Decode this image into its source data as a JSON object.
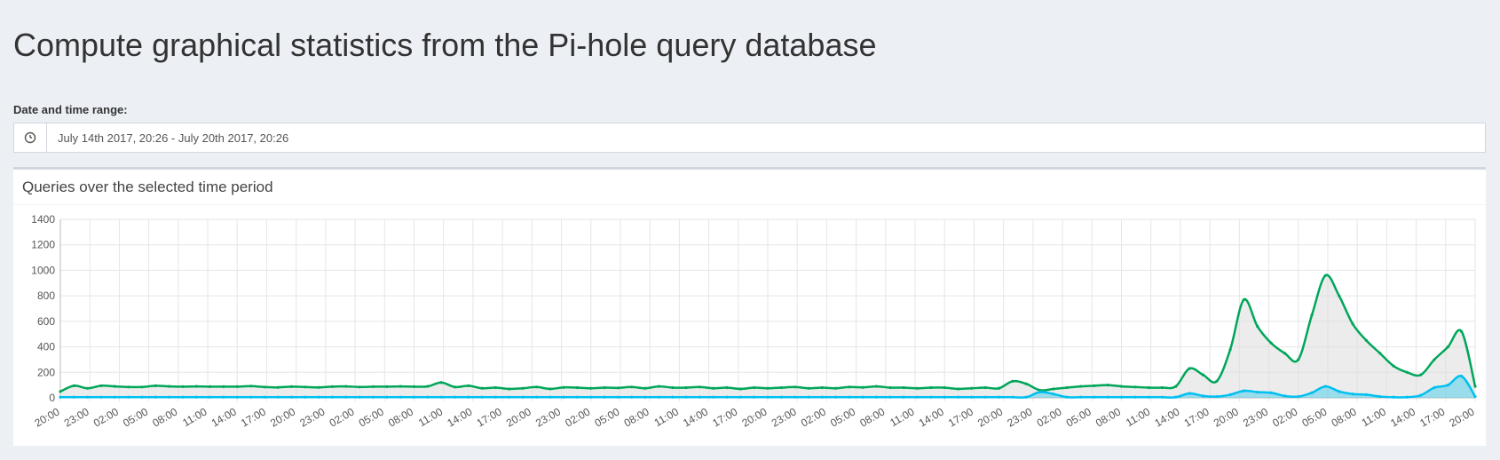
{
  "page": {
    "title": "Compute graphical statistics from the Pi-hole query database",
    "range_label": "Date and time range:",
    "range_value": "July 14th 2017, 20:26 - July 20th 2017, 20:26",
    "range_icon": "clock-icon"
  },
  "box": {
    "title": "Queries over the selected time period"
  },
  "colors": {
    "total": "#00a65a",
    "total_fill": "rgba(220,220,220,0.55)",
    "blocked": "#00c0ef",
    "blocked_fill": "rgba(0,192,239,0.35)",
    "grid": "#e6e6e6"
  },
  "chart_data": {
    "type": "line",
    "y_ticks": [
      0,
      200,
      400,
      600,
      800,
      1000,
      1200,
      1400
    ],
    "ylim": [
      0,
      1400
    ],
    "x_tick_labels": [
      "20:00",
      "23:00",
      "02:00",
      "05:00",
      "08:00",
      "11:00",
      "14:00",
      "17:00",
      "20:00",
      "23:00",
      "02:00",
      "05:00",
      "08:00",
      "11:00",
      "14:00",
      "17:00",
      "20:00",
      "23:00",
      "02:00",
      "05:00",
      "08:00",
      "11:00",
      "14:00",
      "17:00",
      "20:00",
      "23:00",
      "02:00",
      "05:00",
      "08:00",
      "11:00",
      "14:00",
      "17:00",
      "20:00",
      "23:00",
      "02:00",
      "05:00",
      "08:00",
      "11:00",
      "14:00",
      "17:00",
      "20:00",
      "23:00",
      "02:00",
      "05:00",
      "08:00",
      "11:00",
      "14:00",
      "17:00",
      "20:00"
    ],
    "grid": true,
    "hours_span": 144,
    "series": [
      {
        "values": [
          [
            0,
            50
          ],
          [
            1,
            95
          ],
          [
            2,
            75
          ],
          [
            3,
            95
          ],
          [
            4,
            90
          ],
          [
            5,
            85
          ],
          [
            6,
            85
          ],
          [
            7,
            95
          ],
          [
            8,
            90
          ],
          [
            9,
            88
          ],
          [
            10,
            90
          ],
          [
            11,
            88
          ],
          [
            12,
            88
          ],
          [
            13,
            88
          ],
          [
            14,
            92
          ],
          [
            15,
            85
          ],
          [
            16,
            82
          ],
          [
            17,
            88
          ],
          [
            18,
            85
          ],
          [
            19,
            82
          ],
          [
            20,
            88
          ],
          [
            21,
            90
          ],
          [
            22,
            85
          ],
          [
            23,
            88
          ],
          [
            24,
            88
          ],
          [
            25,
            90
          ],
          [
            26,
            88
          ],
          [
            27,
            90
          ],
          [
            28,
            120
          ],
          [
            29,
            85
          ],
          [
            30,
            95
          ],
          [
            31,
            75
          ],
          [
            32,
            80
          ],
          [
            33,
            70
          ],
          [
            34,
            75
          ],
          [
            35,
            85
          ],
          [
            36,
            70
          ],
          [
            37,
            82
          ],
          [
            38,
            80
          ],
          [
            39,
            75
          ],
          [
            40,
            80
          ],
          [
            41,
            78
          ],
          [
            42,
            85
          ],
          [
            43,
            75
          ],
          [
            44,
            90
          ],
          [
            45,
            80
          ],
          [
            46,
            80
          ],
          [
            47,
            85
          ],
          [
            48,
            75
          ],
          [
            49,
            80
          ],
          [
            50,
            70
          ],
          [
            51,
            80
          ],
          [
            52,
            75
          ],
          [
            53,
            80
          ],
          [
            54,
            85
          ],
          [
            55,
            75
          ],
          [
            56,
            80
          ],
          [
            57,
            75
          ],
          [
            58,
            85
          ],
          [
            59,
            82
          ],
          [
            60,
            90
          ],
          [
            61,
            80
          ],
          [
            62,
            80
          ],
          [
            63,
            75
          ],
          [
            64,
            80
          ],
          [
            65,
            80
          ],
          [
            66,
            70
          ],
          [
            67,
            75
          ],
          [
            68,
            80
          ],
          [
            69,
            75
          ],
          [
            70,
            130
          ],
          [
            71,
            110
          ],
          [
            72,
            60
          ],
          [
            73,
            70
          ],
          [
            74,
            80
          ],
          [
            75,
            90
          ],
          [
            76,
            95
          ],
          [
            77,
            100
          ],
          [
            78,
            90
          ],
          [
            79,
            85
          ],
          [
            80,
            80
          ],
          [
            81,
            80
          ],
          [
            82,
            90
          ],
          [
            83,
            230
          ],
          [
            84,
            180
          ],
          [
            85,
            130
          ],
          [
            86,
            380
          ],
          [
            87,
            770
          ],
          [
            88,
            560
          ],
          [
            89,
            430
          ],
          [
            90,
            350
          ],
          [
            91,
            300
          ],
          [
            92,
            650
          ],
          [
            93,
            960
          ],
          [
            94,
            800
          ],
          [
            95,
            580
          ],
          [
            96,
            450
          ],
          [
            97,
            350
          ],
          [
            98,
            250
          ],
          [
            99,
            200
          ],
          [
            100,
            180
          ],
          [
            101,
            300
          ],
          [
            102,
            400
          ],
          [
            103,
            520
          ],
          [
            104,
            90
          ]
        ],
        "name": ""
      },
      {
        "values": [
          [
            0,
            5
          ],
          [
            1,
            5
          ],
          [
            2,
            5
          ],
          [
            3,
            5
          ],
          [
            4,
            5
          ],
          [
            5,
            5
          ],
          [
            6,
            5
          ],
          [
            7,
            5
          ],
          [
            8,
            5
          ],
          [
            9,
            5
          ],
          [
            10,
            5
          ],
          [
            11,
            5
          ],
          [
            12,
            5
          ],
          [
            13,
            5
          ],
          [
            14,
            5
          ],
          [
            15,
            5
          ],
          [
            16,
            5
          ],
          [
            17,
            5
          ],
          [
            18,
            5
          ],
          [
            19,
            5
          ],
          [
            20,
            5
          ],
          [
            21,
            5
          ],
          [
            22,
            5
          ],
          [
            23,
            5
          ],
          [
            24,
            5
          ],
          [
            25,
            5
          ],
          [
            26,
            5
          ],
          [
            27,
            5
          ],
          [
            28,
            5
          ],
          [
            29,
            5
          ],
          [
            30,
            5
          ],
          [
            31,
            5
          ],
          [
            32,
            5
          ],
          [
            33,
            5
          ],
          [
            34,
            5
          ],
          [
            35,
            5
          ],
          [
            36,
            5
          ],
          [
            37,
            5
          ],
          [
            38,
            5
          ],
          [
            39,
            5
          ],
          [
            40,
            5
          ],
          [
            41,
            5
          ],
          [
            42,
            5
          ],
          [
            43,
            5
          ],
          [
            44,
            5
          ],
          [
            45,
            5
          ],
          [
            46,
            5
          ],
          [
            47,
            5
          ],
          [
            48,
            5
          ],
          [
            49,
            5
          ],
          [
            50,
            5
          ],
          [
            51,
            5
          ],
          [
            52,
            5
          ],
          [
            53,
            5
          ],
          [
            54,
            5
          ],
          [
            55,
            5
          ],
          [
            56,
            5
          ],
          [
            57,
            5
          ],
          [
            58,
            5
          ],
          [
            59,
            5
          ],
          [
            60,
            5
          ],
          [
            61,
            5
          ],
          [
            62,
            5
          ],
          [
            63,
            5
          ],
          [
            64,
            5
          ],
          [
            65,
            5
          ],
          [
            66,
            5
          ],
          [
            67,
            5
          ],
          [
            68,
            5
          ],
          [
            69,
            5
          ],
          [
            70,
            5
          ],
          [
            71,
            5
          ],
          [
            72,
            45
          ],
          [
            73,
            30
          ],
          [
            74,
            5
          ],
          [
            75,
            5
          ],
          [
            76,
            5
          ],
          [
            77,
            5
          ],
          [
            78,
            5
          ],
          [
            79,
            5
          ],
          [
            80,
            5
          ],
          [
            81,
            5
          ],
          [
            82,
            5
          ],
          [
            83,
            35
          ],
          [
            84,
            15
          ],
          [
            85,
            10
          ],
          [
            86,
            25
          ],
          [
            87,
            55
          ],
          [
            88,
            45
          ],
          [
            89,
            40
          ],
          [
            90,
            15
          ],
          [
            91,
            10
          ],
          [
            92,
            40
          ],
          [
            93,
            90
          ],
          [
            94,
            50
          ],
          [
            95,
            30
          ],
          [
            96,
            25
          ],
          [
            97,
            10
          ],
          [
            98,
            5
          ],
          [
            99,
            5
          ],
          [
            100,
            20
          ],
          [
            101,
            80
          ],
          [
            102,
            100
          ],
          [
            103,
            170
          ],
          [
            104,
            10
          ]
        ],
        "name": ""
      }
    ],
    "xlabel": "",
    "ylabel": "",
    "title": ""
  }
}
